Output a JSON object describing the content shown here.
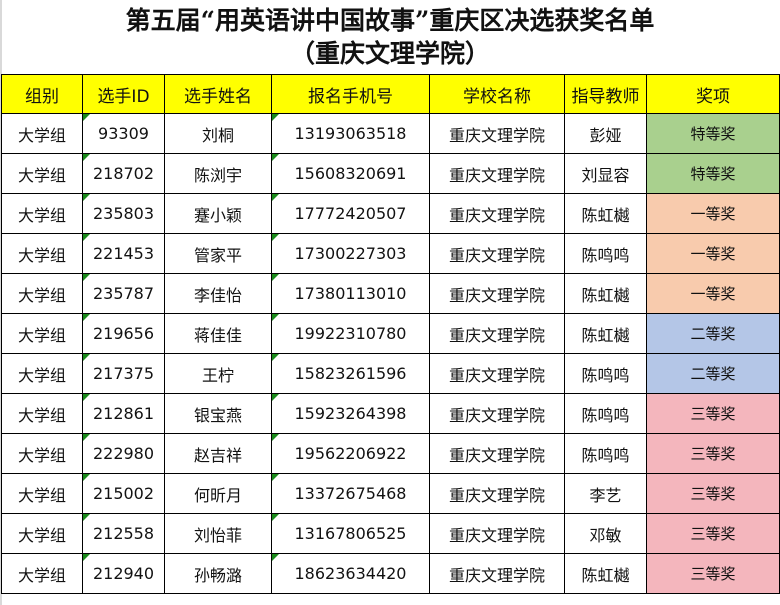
{
  "title": {
    "line1": "第五届“用英语讲中国故事”重庆区决选获奖名单",
    "line2": "（重庆文理学院）"
  },
  "colors": {
    "header_bg": "#ffff00",
    "特等奖": "#a9d08e",
    "一等奖": "#f8cbad",
    "二等奖": "#b4c6e7",
    "三等奖": "#f4b6bd",
    "error_marker": "#1a8a1a"
  },
  "table": {
    "headers": [
      "组别",
      "选手ID",
      "选手姓名",
      "报名手机号",
      "学校名称",
      "指导教师",
      "奖项"
    ],
    "rows": [
      {
        "group": "大学组",
        "id": "93309",
        "name": "刘桐",
        "phone": "13193063518",
        "school": "重庆文理学院",
        "teacher": "彭娅",
        "award": "特等奖"
      },
      {
        "group": "大学组",
        "id": "218702",
        "name": "陈浏宇",
        "phone": "15608320691",
        "school": "重庆文理学院",
        "teacher": "刘显容",
        "award": "特等奖"
      },
      {
        "group": "大学组",
        "id": "235803",
        "name": "蹇小颖",
        "phone": "17772420507",
        "school": "重庆文理学院",
        "teacher": "陈虹樾",
        "award": "一等奖"
      },
      {
        "group": "大学组",
        "id": "221453",
        "name": "管家平",
        "phone": "17300227303",
        "school": "重庆文理学院",
        "teacher": "陈鸣鸣",
        "award": "一等奖"
      },
      {
        "group": "大学组",
        "id": "235787",
        "name": "李佳怡",
        "phone": "17380113010",
        "school": "重庆文理学院",
        "teacher": "陈虹樾",
        "award": "一等奖"
      },
      {
        "group": "大学组",
        "id": "219656",
        "name": "蒋佳佳",
        "phone": "19922310780",
        "school": "重庆文理学院",
        "teacher": "陈虹樾",
        "award": "二等奖"
      },
      {
        "group": "大学组",
        "id": "217375",
        "name": "王柠",
        "phone": "15823261596",
        "school": "重庆文理学院",
        "teacher": "陈鸣鸣",
        "award": "二等奖"
      },
      {
        "group": "大学组",
        "id": "212861",
        "name": "银宝燕",
        "phone": "15923264398",
        "school": "重庆文理学院",
        "teacher": "陈鸣鸣",
        "award": "三等奖"
      },
      {
        "group": "大学组",
        "id": "222980",
        "name": "赵吉祥",
        "phone": "19562206922",
        "school": "重庆文理学院",
        "teacher": "陈鸣鸣",
        "award": "三等奖"
      },
      {
        "group": "大学组",
        "id": "215002",
        "name": "何昕月",
        "phone": "13372675468",
        "school": "重庆文理学院",
        "teacher": "李艺",
        "award": "三等奖"
      },
      {
        "group": "大学组",
        "id": "212558",
        "name": "刘怡菲",
        "phone": "13167806525",
        "school": "重庆文理学院",
        "teacher": "邓敏",
        "award": "三等奖"
      },
      {
        "group": "大学组",
        "id": "212940",
        "name": "孙畅潞",
        "phone": "18623634420",
        "school": "重庆文理学院",
        "teacher": "陈虹樾",
        "award": "三等奖"
      }
    ]
  }
}
